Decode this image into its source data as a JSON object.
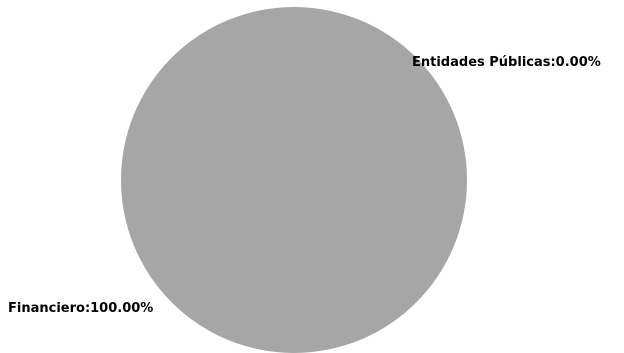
{
  "chart_data": {
    "type": "pie",
    "slices": [
      {
        "label": "Financiero",
        "value": 100.0,
        "display": "Financiero:100.00%",
        "color": "#a6a6a6"
      },
      {
        "label": "Entidades Públicas",
        "value": 0.0,
        "display": "Entidades Públicas:0.00%",
        "color": "#a6a6a6"
      }
    ]
  },
  "colors": {
    "background": "#ffffff",
    "slice_fill": "#a6a6a6",
    "label_text": "#000000"
  }
}
